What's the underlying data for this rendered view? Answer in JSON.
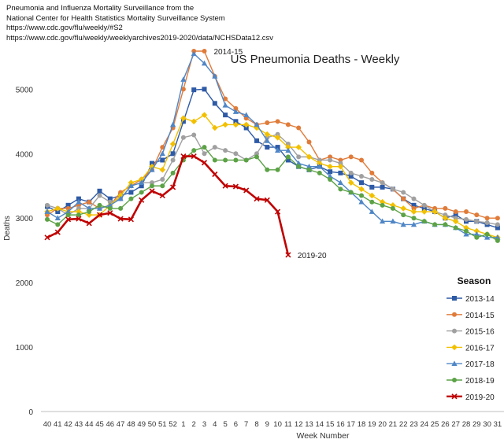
{
  "notes": {
    "line1": "Pneumonia and Influenza Mortality Surveillance from the",
    "line2": "National Center for Health Statistics Mortality Surveillance System",
    "line3": "https://www.cdc.gov/flu/weekly/#S2",
    "line4": "https://www.cdc.gov/flu/weekly/weeklyarchives2019-2020/data/NCHSData12.csv"
  },
  "chart_data": {
    "type": "line",
    "title": "US Pneumonia Deaths - Weekly",
    "xlabel": "Week Number",
    "ylabel": "Deaths",
    "ylim": [
      0,
      5700
    ],
    "yticks": [
      0,
      1000,
      2000,
      3000,
      4000,
      5000
    ],
    "categories": [
      "40",
      "41",
      "42",
      "43",
      "44",
      "45",
      "46",
      "47",
      "48",
      "49",
      "50",
      "51",
      "52",
      "1",
      "2",
      "3",
      "4",
      "5",
      "6",
      "7",
      "8",
      "9",
      "10",
      "11",
      "12",
      "13",
      "14",
      "15",
      "16",
      "17",
      "18",
      "19",
      "20",
      "21",
      "22",
      "23",
      "24",
      "25",
      "26",
      "27",
      "28",
      "29",
      "30",
      "31"
    ],
    "legend_title": "Season",
    "annotations": [
      {
        "text": "2014-15",
        "series": "2014-15",
        "week": "3"
      },
      {
        "text": "2019-20",
        "series": "2019-20",
        "week": "11"
      }
    ],
    "series": [
      {
        "name": "2013-14",
        "color": "#2e5aa6",
        "marker": "square",
        "values": [
          3180,
          3100,
          3200,
          3300,
          3250,
          3420,
          3300,
          3350,
          3400,
          3500,
          3850,
          3900,
          4000,
          4500,
          4990,
          5000,
          4780,
          4600,
          4500,
          4400,
          4200,
          4100,
          4100,
          3900,
          3800,
          3750,
          3800,
          3720,
          3700,
          3650,
          3550,
          3480,
          3480,
          3450,
          3300,
          3200,
          3150,
          3100,
          3000,
          3050,
          2950,
          2950,
          2900,
          2850
        ]
      },
      {
        "name": "2014-15",
        "color": "#e07b39",
        "marker": "circle",
        "values": [
          3050,
          3150,
          3150,
          3200,
          3250,
          3150,
          3200,
          3400,
          3500,
          3600,
          3750,
          4100,
          4400,
          5000,
          5590,
          5590,
          5200,
          4850,
          4700,
          4550,
          4450,
          4480,
          4500,
          4450,
          4400,
          4180,
          3900,
          3950,
          3900,
          3950,
          3900,
          3700,
          3550,
          3450,
          3300,
          3150,
          3200,
          3150,
          3150,
          3100,
          3100,
          3050,
          3000,
          3000
        ]
      },
      {
        "name": "2015-16",
        "color": "#a0a0a0",
        "marker": "circle",
        "values": [
          3200,
          3150,
          3050,
          3150,
          3150,
          3350,
          3250,
          3300,
          3500,
          3550,
          3550,
          3600,
          3900,
          4250,
          4290,
          4000,
          4100,
          4050,
          4000,
          3900,
          4000,
          4250,
          4300,
          4150,
          3950,
          3950,
          3900,
          3900,
          3850,
          3700,
          3650,
          3600,
          3550,
          3450,
          3400,
          3300,
          3200,
          3100,
          3050,
          3000,
          2980,
          2950,
          2930,
          2900
        ]
      },
      {
        "name": "2016-17",
        "color": "#f2c000",
        "marker": "diamond",
        "values": [
          3100,
          3150,
          3100,
          3100,
          3050,
          3050,
          3200,
          3350,
          3550,
          3600,
          3800,
          3750,
          4150,
          4550,
          4500,
          4600,
          4400,
          4450,
          4450,
          4450,
          4400,
          4300,
          4250,
          4100,
          4100,
          3950,
          3850,
          3800,
          3800,
          3550,
          3450,
          3350,
          3250,
          3200,
          3150,
          3100,
          3100,
          3100,
          3000,
          2950,
          2850,
          2800,
          2750,
          2700
        ]
      },
      {
        "name": "2017-18",
        "color": "#4f86c6",
        "marker": "triangle",
        "values": [
          3100,
          3000,
          3100,
          3250,
          3150,
          3150,
          3200,
          3300,
          3500,
          3550,
          3750,
          4000,
          4450,
          5150,
          5550,
          5400,
          5200,
          4750,
          4650,
          4600,
          4450,
          4200,
          4050,
          4050,
          3850,
          3800,
          3800,
          3650,
          3550,
          3400,
          3250,
          3100,
          2950,
          2950,
          2900,
          2900,
          2950,
          2900,
          2900,
          2850,
          2750,
          2750,
          2700,
          2700
        ]
      },
      {
        "name": "2018-19",
        "color": "#5ca246",
        "marker": "circle",
        "values": [
          2980,
          2900,
          3050,
          3050,
          3100,
          3200,
          3150,
          3150,
          3300,
          3400,
          3500,
          3500,
          3700,
          3900,
          4050,
          4100,
          3900,
          3900,
          3900,
          3900,
          3950,
          3750,
          3750,
          3950,
          3800,
          3750,
          3700,
          3600,
          3450,
          3400,
          3350,
          3250,
          3200,
          3150,
          3050,
          3000,
          2950,
          2900,
          2900,
          2850,
          2800,
          2700,
          2750,
          2650
        ]
      },
      {
        "name": "2019-20",
        "color": "#c00000",
        "marker": "x",
        "values": [
          2700,
          2780,
          2980,
          2990,
          2920,
          3050,
          3080,
          2990,
          2980,
          3280,
          3420,
          3350,
          3480,
          3960,
          3960,
          3860,
          3680,
          3500,
          3490,
          3430,
          3300,
          3280,
          3100,
          2430,
          null,
          null,
          null,
          null,
          null,
          null,
          null,
          null,
          null,
          null,
          null,
          null,
          null,
          null,
          null,
          null,
          null,
          null,
          null,
          null
        ]
      }
    ]
  }
}
